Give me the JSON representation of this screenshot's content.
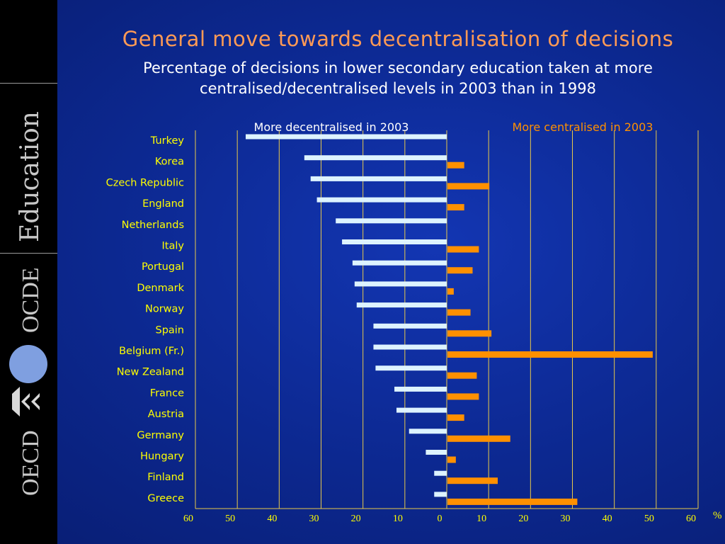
{
  "title": "General move towards decentralisation of decisions",
  "subtitle_line1": "Percentage of decisions in lower secondary education taken at more",
  "subtitle_line2": "centralised/decentralised levels in 2003 than in 1998",
  "sidebar": {
    "logo_education": "Education",
    "logo_ocde": "OCDE",
    "logo_oecd": "OECD"
  },
  "colors": {
    "background": "#0d2a95",
    "decentralised_bar": "#ddf3ff",
    "centralised_bar": "#ff9000",
    "title": "#ff9a55",
    "country_label": "#ffff00",
    "gridline": "#e8c94a",
    "decentralised_header": "#ffffff",
    "centralised_header": "#ff9000",
    "sidebar": "#000000"
  },
  "chart_data": {
    "type": "bar",
    "orientation": "horizontal",
    "categories": [
      "Turkey",
      "Korea",
      "Czech Republic",
      "England",
      "Netherlands",
      "Italy",
      "Portugal",
      "Denmark",
      "Norway",
      "Spain",
      "Belgium (Fr.)",
      "New Zealand",
      "France",
      "Austria",
      "Germany",
      "Hungary",
      "Finland",
      "Greece"
    ],
    "series": [
      {
        "name": "More decentralised in 2003",
        "values": [
          -48,
          -34,
          -32.5,
          -31,
          -26.5,
          -25,
          -22.5,
          -22,
          -21.5,
          -17.5,
          -17.5,
          -17,
          -12.5,
          -12,
          -9,
          -5,
          -3,
          -3
        ]
      },
      {
        "name": "More centralised in 2003",
        "values": [
          0,
          4,
          10,
          4,
          0,
          7.5,
          6,
          1.5,
          5.5,
          10.5,
          49,
          7,
          7.5,
          4,
          15,
          2,
          12,
          31
        ]
      }
    ],
    "xlim": [
      -60,
      60
    ],
    "xticks": [
      -60,
      -50,
      -40,
      -30,
      -20,
      -10,
      0,
      10,
      20,
      30,
      40,
      50,
      60
    ],
    "xtick_labels": [
      "60",
      "50",
      "40",
      "30",
      "20",
      "10",
      "0",
      "10",
      "20",
      "30",
      "40",
      "50",
      "60"
    ],
    "xunit": "%",
    "grid": true,
    "title": "",
    "xlabel": "",
    "ylabel": ""
  }
}
